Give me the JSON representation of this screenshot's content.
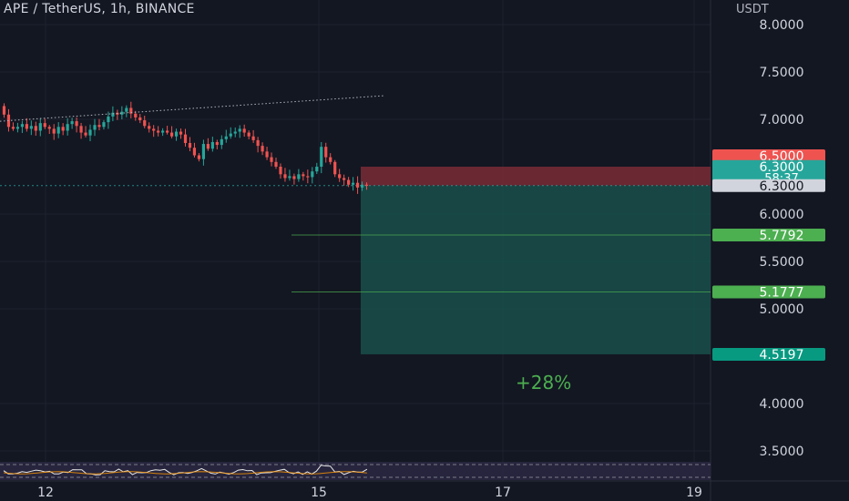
{
  "header": {
    "symbol_title": "APE / TetherUS, 1h, BINANCE",
    "currency": "USDT"
  },
  "colors": {
    "background": "#131722",
    "up": "#26a69a",
    "down": "#ef5350",
    "target_zone": "#1a5750",
    "stop_zone": "#7a2c36",
    "target_line": "#4caf50",
    "price_badge": "#d1d4dc",
    "rsi_panel": "#2a2740"
  },
  "chart_data": {
    "type": "candlestick",
    "ylim": [
      3.3,
      8.25
    ],
    "y_ticks": [
      "8.0000",
      "7.5000",
      "7.0000",
      "6.0000",
      "5.5000",
      "5.0000",
      "4.0000",
      "3.5000"
    ],
    "x_ticks": [
      "12",
      "15",
      "17",
      "19"
    ],
    "price_path": [
      7.14,
      7.05,
      6.92,
      6.9,
      6.92,
      6.95,
      6.9,
      6.93,
      6.88,
      6.96,
      6.92,
      6.9,
      6.85,
      6.92,
      6.88,
      6.95,
      6.98,
      6.93,
      6.86,
      6.83,
      6.89,
      6.94,
      6.92,
      6.97,
      7.03,
      7.07,
      7.05,
      7.08,
      7.12,
      7.06,
      7.02,
      6.99,
      6.93,
      6.9,
      6.88,
      6.86,
      6.88,
      6.86,
      6.82,
      6.87,
      6.84,
      6.75,
      6.7,
      6.62,
      6.58,
      6.74,
      6.69,
      6.76,
      6.73,
      6.79,
      6.82,
      6.85,
      6.87,
      6.9,
      6.86,
      6.82,
      6.78,
      6.72,
      6.66,
      6.6,
      6.55,
      6.5,
      6.42,
      6.38,
      6.4,
      6.37,
      6.42,
      6.4,
      6.39,
      6.45,
      6.5,
      6.71,
      6.6,
      6.55,
      6.42,
      6.38,
      6.36,
      6.31,
      6.33,
      6.28,
      6.31,
      6.3
    ],
    "trendline": {
      "from": 6.98,
      "to": 7.25
    },
    "position": {
      "stop": "6.5000",
      "entry": "6.3000",
      "countdown": "58:37",
      "last_price": "6.3000",
      "targets": [
        "5.7792",
        "5.1777"
      ],
      "final_target": "4.5197",
      "percent_label": "+28%"
    }
  }
}
